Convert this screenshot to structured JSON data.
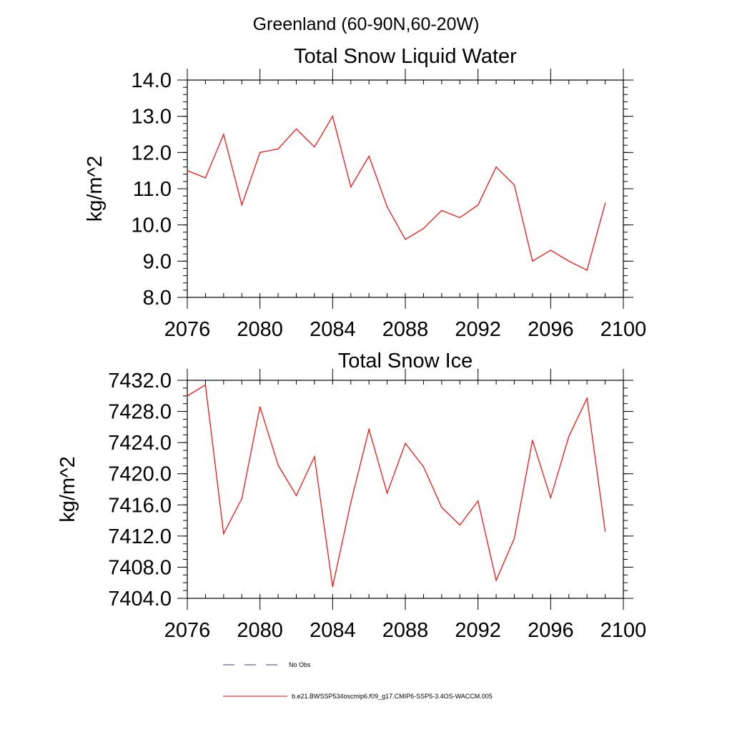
{
  "page": {
    "suptitle": "Greenland (60-90N,60-20W)"
  },
  "legend": {
    "obs_label": "No Obs",
    "model_label": "b.e21.BWSSP534oscmip6.f09_g17.CMIP6-SSP5-3.4OS-WACCM.005",
    "obs_color": "#3b3b8f",
    "model_color": "#ff0000"
  },
  "chart_data": [
    {
      "type": "line",
      "title": "Total Snow Liquid Water",
      "xlabel": "",
      "ylabel": "kg/m^2",
      "xlim": [
        2076,
        2100
      ],
      "ylim": [
        8.0,
        14.0
      ],
      "xticks": [
        2076,
        2080,
        2084,
        2088,
        2092,
        2096,
        2100
      ],
      "xtick_labels": [
        "2076",
        "2080",
        "2084",
        "2088",
        "2092",
        "2096",
        "2100"
      ],
      "yticks": [
        8.0,
        9.0,
        10.0,
        11.0,
        12.0,
        13.0,
        14.0
      ],
      "ytick_labels": [
        "8.0",
        "9.0",
        "10.0",
        "11.0",
        "12.0",
        "13.0",
        "14.0"
      ],
      "grid": false,
      "series": [
        {
          "color": "#ff0000",
          "x": [
            2076,
            2077,
            2078,
            2079,
            2080,
            2081,
            2082,
            2083,
            2084,
            2085,
            2086,
            2087,
            2088,
            2089,
            2090,
            2091,
            2092,
            2093,
            2094,
            2095,
            2096,
            2097,
            2098,
            2099
          ],
          "y": [
            11.5,
            11.3,
            12.5,
            10.55,
            12.0,
            12.1,
            12.65,
            12.15,
            13.0,
            11.05,
            11.9,
            10.5,
            9.6,
            9.9,
            10.4,
            10.2,
            10.55,
            11.6,
            11.1,
            9.0,
            9.3,
            9.0,
            8.75,
            10.6
          ]
        }
      ]
    },
    {
      "type": "line",
      "title": "Total Snow Ice",
      "xlabel": "",
      "ylabel": "kg/m^2",
      "xlim": [
        2076,
        2100
      ],
      "ylim": [
        7404.0,
        7432.0
      ],
      "xticks": [
        2076,
        2080,
        2084,
        2088,
        2092,
        2096,
        2100
      ],
      "xtick_labels": [
        "2076",
        "2080",
        "2084",
        "2088",
        "2092",
        "2096",
        "2100"
      ],
      "yticks": [
        7404.0,
        7408.0,
        7412.0,
        7416.0,
        7420.0,
        7424.0,
        7428.0,
        7432.0
      ],
      "ytick_labels": [
        "7404.0",
        "7408.0",
        "7412.0",
        "7416.0",
        "7420.0",
        "7424.0",
        "7428.0",
        "7432.0"
      ],
      "grid": false,
      "series": [
        {
          "color": "#ff0000",
          "x": [
            2076,
            2077,
            2078,
            2079,
            2080,
            2081,
            2082,
            2083,
            2084,
            2085,
            2086,
            2087,
            2088,
            2089,
            2090,
            2091,
            2092,
            2093,
            2094,
            2095,
            2096,
            2097,
            2098,
            2099
          ],
          "y": [
            7430.0,
            7431.4,
            7412.3,
            7416.8,
            7428.6,
            7421.1,
            7417.2,
            7422.2,
            7405.5,
            7416.3,
            7425.7,
            7417.5,
            7423.9,
            7420.9,
            7415.7,
            7413.4,
            7416.5,
            7406.3,
            7411.7,
            7424.3,
            7416.9,
            7424.8,
            7429.7,
            7412.6
          ]
        }
      ]
    }
  ]
}
